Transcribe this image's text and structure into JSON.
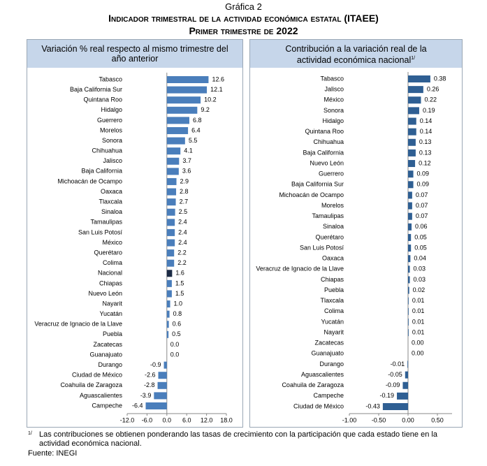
{
  "figure_label": "Gráfica 2",
  "title": "Indicador trimestral de la actividad económica estatal (ITAEE)",
  "subtitle": "Primer trimestre de 2022",
  "chart_data": [
    {
      "type": "hbar",
      "title": "Variación % real respecto al mismo trimestre del año anterior",
      "categories": [
        "Tabasco",
        "Baja California Sur",
        "Quintana Roo",
        "Hidalgo",
        "Guerrero",
        "Morelos",
        "Sonora",
        "Chihuahua",
        "Jalisco",
        "Baja California",
        "Michoacán de Ocampo",
        "Oaxaca",
        "Tlaxcala",
        "Sinaloa",
        "Tamaulipas",
        "San Luis Potosí",
        "México",
        "Querétaro",
        "Colima",
        "Nacional",
        "Chiapas",
        "Nuevo León",
        "Nayarit",
        "Yucatán",
        "Veracruz de Ignacio de la Llave",
        "Puebla",
        "Zacatecas",
        "Guanajuato",
        "Durango",
        "Ciudad de México",
        "Coahuila de Zaragoza",
        "Aguascalientes",
        "Campeche"
      ],
      "values": [
        12.6,
        12.1,
        10.2,
        9.2,
        6.8,
        6.4,
        5.5,
        4.1,
        3.7,
        3.6,
        2.9,
        2.8,
        2.7,
        2.5,
        2.4,
        2.4,
        2.4,
        2.2,
        2.2,
        1.6,
        1.5,
        1.5,
        1.0,
        0.8,
        0.6,
        0.5,
        0.0,
        0.0,
        -0.9,
        -2.6,
        -2.8,
        -3.9,
        -6.4
      ],
      "value_labels": [
        "12.6",
        "12.1",
        "10.2",
        "9.2",
        "6.8",
        "6.4",
        "5.5",
        "4.1",
        "3.7",
        "3.6",
        "2.9",
        "2.8",
        "2.7",
        "2.5",
        "2.4",
        "2.4",
        "2.4",
        "2.2",
        "2.2",
        "1.6",
        "1.5",
        "1.5",
        "1.0",
        "0.8",
        "0.6",
        "0.5",
        "0.0",
        "0.0",
        "-0.9",
        "-2.6",
        "-2.8",
        "-3.9",
        "-6.4"
      ],
      "colors": [
        "#4a7ebb",
        "#4a7ebb",
        "#4a7ebb",
        "#4a7ebb",
        "#4a7ebb",
        "#4a7ebb",
        "#4a7ebb",
        "#4a7ebb",
        "#4a7ebb",
        "#4a7ebb",
        "#4a7ebb",
        "#4a7ebb",
        "#4a7ebb",
        "#4a7ebb",
        "#4a7ebb",
        "#4a7ebb",
        "#4a7ebb",
        "#4a7ebb",
        "#4a7ebb",
        "#1c2b45",
        "#4a7ebb",
        "#4a7ebb",
        "#4a7ebb",
        "#4a7ebb",
        "#4a7ebb",
        "#4a7ebb",
        "#4a7ebb",
        "#4a7ebb",
        "#4a7ebb",
        "#4a7ebb",
        "#4a7ebb",
        "#4a7ebb",
        "#4a7ebb"
      ],
      "xlim": [
        -12,
        18
      ],
      "xticks": [
        {
          "value": -12,
          "label": "-12.0"
        },
        {
          "value": -6,
          "label": "-6.0"
        },
        {
          "value": 0,
          "label": "0.0"
        },
        {
          "value": 6,
          "label": "6.0"
        },
        {
          "value": 12,
          "label": "12.0"
        },
        {
          "value": 18,
          "label": "18.0"
        }
      ]
    },
    {
      "type": "hbar",
      "title": "Contribución a la variación real de la actividad económica nacional",
      "title_note": "1/",
      "categories": [
        "Tabasco",
        "Jalisco",
        "México",
        "Sonora",
        "Hidalgo",
        "Quintana Roo",
        "Chihuahua",
        "Baja California",
        "Nuevo León",
        "Guerrero",
        "Baja California Sur",
        "Michoacán de Ocampo",
        "Morelos",
        "Tamaulipas",
        "Sinaloa",
        "Querétaro",
        "San Luis Potosí",
        "Oaxaca",
        "Veracruz de Ignacio de la Llave",
        "Chiapas",
        "Puebla",
        "Tlaxcala",
        "Colima",
        "Yucatán",
        "Nayarit",
        "Zacatecas",
        "Guanajuato",
        "Durango",
        "Aguascalientes",
        "Coahuila de Zaragoza",
        "Campeche",
        "Ciudad de México"
      ],
      "values": [
        0.38,
        0.26,
        0.22,
        0.19,
        0.14,
        0.14,
        0.13,
        0.13,
        0.12,
        0.09,
        0.09,
        0.07,
        0.07,
        0.07,
        0.06,
        0.05,
        0.05,
        0.04,
        0.03,
        0.03,
        0.02,
        0.01,
        0.01,
        0.01,
        0.01,
        0.0,
        0.0,
        -0.01,
        -0.05,
        -0.09,
        -0.19,
        -0.43
      ],
      "value_labels": [
        "0.38",
        "0.26",
        "0.22",
        "0.19",
        "0.14",
        "0.14",
        "0.13",
        "0.13",
        "0.12",
        "0.09",
        "0.09",
        "0.07",
        "0.07",
        "0.07",
        "0.06",
        "0.05",
        "0.05",
        "0.04",
        "0.03",
        "0.03",
        "0.02",
        "0.01",
        "0.01",
        "0.01",
        "0.01",
        "0.00",
        "0.00",
        "-0.01",
        "-0.05",
        "-0.09",
        "-0.19",
        "-0.43"
      ],
      "color": "#2f5f93",
      "xlim": [
        -1,
        0.75
      ],
      "xticks": [
        {
          "value": -1,
          "label": "-1.00"
        },
        {
          "value": -0.5,
          "label": "-0.50"
        },
        {
          "value": 0,
          "label": "0.00"
        },
        {
          "value": 0.5,
          "label": "0.50"
        }
      ]
    }
  ],
  "footnote": {
    "marker": "1/",
    "text": "Las contribuciones se obtienen ponderando las tasas de crecimiento con la participación que cada estado tiene en la actividad económica nacional."
  },
  "source": "Fuente: INEGI"
}
